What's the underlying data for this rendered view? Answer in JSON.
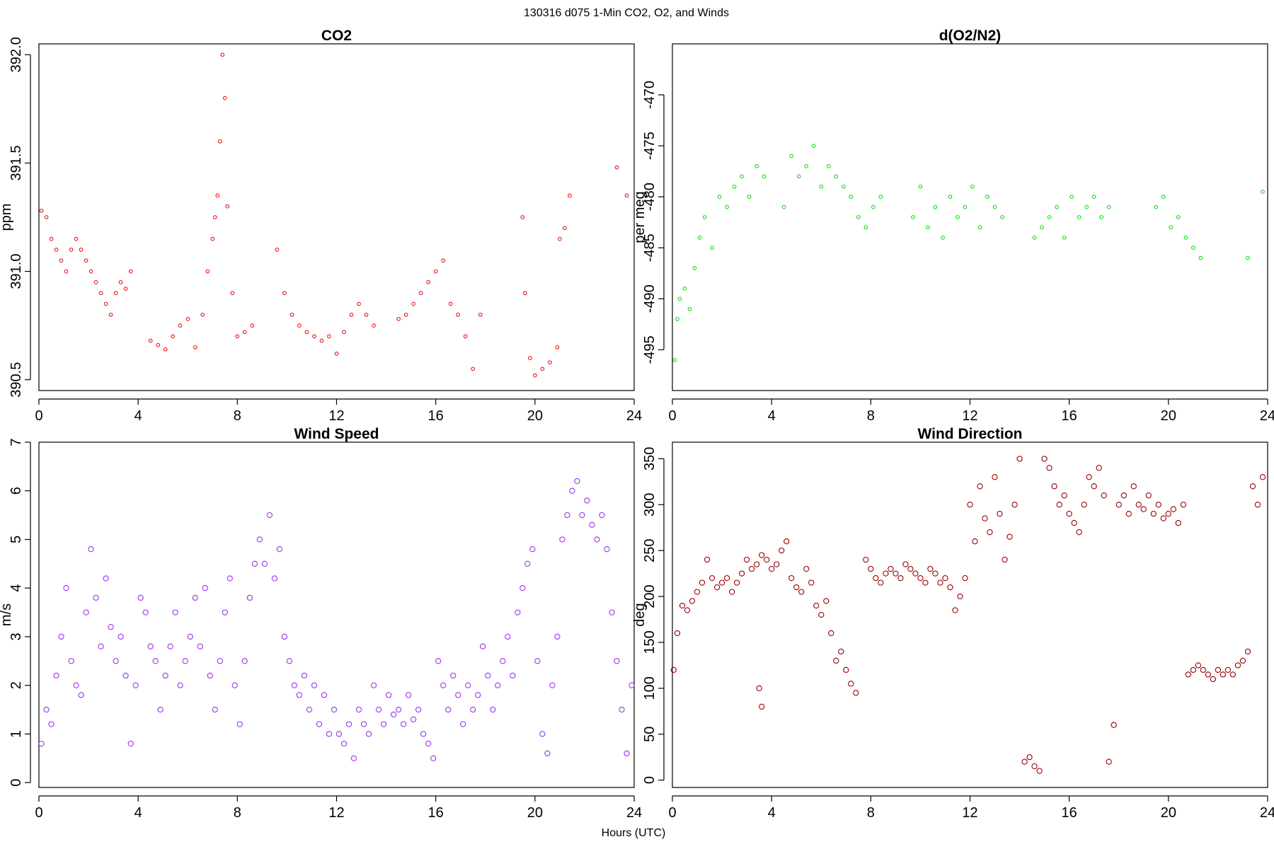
{
  "figure": {
    "title": "130316   d075   1-Min CO2, O2, and Winds",
    "xlabel": "Hours (UTC)"
  },
  "chart_data": [
    {
      "type": "scatter",
      "title": "CO2",
      "ylabel": "ppm",
      "xlabel": "",
      "xlim": [
        0,
        24
      ],
      "ylim": [
        390.45,
        392.05
      ],
      "xticks": [
        0,
        4,
        8,
        12,
        16,
        20,
        24
      ],
      "yticks": [
        390.5,
        391.0,
        391.5,
        392.0
      ],
      "ytick_labels": [
        "390.5",
        "391.0",
        "391.5",
        "392.0"
      ],
      "color": "#ee1111",
      "series": [
        {
          "x": [
            0.1,
            0.3,
            0.5,
            0.7,
            0.9,
            1.1,
            1.3,
            1.5,
            1.7,
            1.9,
            2.1,
            2.3,
            2.5,
            2.7,
            2.9,
            3.1,
            3.3,
            3.5,
            3.7,
            4.5,
            4.8,
            5.1,
            5.4,
            5.7,
            6.0,
            6.3,
            6.6,
            6.8,
            7.0,
            7.1,
            7.2,
            7.3,
            7.4,
            7.5,
            7.6,
            7.8,
            8.0,
            8.3,
            8.6,
            9.6,
            9.9,
            10.2,
            10.5,
            10.8,
            11.1,
            11.4,
            11.7,
            12.0,
            12.3,
            12.6,
            12.9,
            13.2,
            13.5,
            14.5,
            14.8,
            15.1,
            15.4,
            15.7,
            16.0,
            16.3,
            16.6,
            16.9,
            17.2,
            17.5,
            17.8,
            19.5,
            19.6,
            19.8,
            20.0,
            20.3,
            20.6,
            20.9,
            21.0,
            21.2,
            21.4,
            23.3,
            23.7
          ],
          "y": [
            391.28,
            391.25,
            391.15,
            391.1,
            391.05,
            391.0,
            391.1,
            391.15,
            391.1,
            391.05,
            391.0,
            390.95,
            390.9,
            390.85,
            390.8,
            390.9,
            390.95,
            390.92,
            391.0,
            390.68,
            390.66,
            390.64,
            390.7,
            390.75,
            390.78,
            390.65,
            390.8,
            391.0,
            391.15,
            391.25,
            391.35,
            391.6,
            392.0,
            391.8,
            391.3,
            390.9,
            390.7,
            390.72,
            390.75,
            391.1,
            390.9,
            390.8,
            390.75,
            390.72,
            390.7,
            390.68,
            390.7,
            390.62,
            390.72,
            390.8,
            390.85,
            390.8,
            390.75,
            390.78,
            390.8,
            390.85,
            390.9,
            390.95,
            391.0,
            391.05,
            390.85,
            390.8,
            390.7,
            390.55,
            390.8,
            391.25,
            390.9,
            390.6,
            390.52,
            390.55,
            390.58,
            390.65,
            391.15,
            391.2,
            391.35,
            391.48,
            391.35
          ]
        }
      ]
    },
    {
      "type": "scatter",
      "title": "d(O2/N2)",
      "ylabel": "per meg",
      "xlabel": "",
      "xlim": [
        0,
        24
      ],
      "ylim": [
        -499,
        -465
      ],
      "xticks": [
        0,
        4,
        8,
        12,
        16,
        20,
        24
      ],
      "yticks": [
        -495,
        -490,
        -485,
        -480,
        -475,
        -470
      ],
      "ytick_labels": [
        "-495",
        "-490",
        "-485",
        "-480",
        "-475",
        "-470"
      ],
      "color": "#11dd11",
      "series": [
        {
          "x": [
            0.1,
            0.2,
            0.3,
            0.5,
            0.7,
            0.9,
            1.1,
            1.3,
            1.6,
            1.9,
            2.2,
            2.5,
            2.8,
            3.1,
            3.4,
            3.7,
            4.5,
            4.8,
            5.1,
            5.4,
            5.7,
            6.0,
            6.3,
            6.6,
            6.9,
            7.2,
            7.5,
            7.8,
            8.1,
            8.4,
            9.7,
            10.0,
            10.3,
            10.6,
            10.9,
            11.2,
            11.5,
            11.8,
            12.1,
            12.4,
            12.7,
            13.0,
            13.3,
            14.6,
            14.9,
            15.2,
            15.5,
            15.8,
            16.1,
            16.4,
            16.7,
            17.0,
            17.3,
            17.6,
            19.5,
            19.8,
            20.1,
            20.4,
            20.7,
            21.0,
            21.3,
            23.2,
            23.8
          ],
          "y": [
            -496,
            -492,
            -490,
            -489,
            -491,
            -487,
            -484,
            -482,
            -485,
            -480,
            -481,
            -479,
            -478,
            -480,
            -477,
            -478,
            -481,
            -476,
            -478,
            -477,
            -475,
            -479,
            -477,
            -478,
            -479,
            -480,
            -482,
            -483,
            -481,
            -480,
            -482,
            -479,
            -483,
            -481,
            -484,
            -480,
            -482,
            -481,
            -479,
            -483,
            -480,
            -481,
            -482,
            -484,
            -483,
            -482,
            -481,
            -484,
            -480,
            -482,
            -481,
            -480,
            -482,
            -481,
            -481,
            -480,
            -483,
            -482,
            -484,
            -485,
            -486,
            -486,
            -479.5
          ]
        }
      ]
    },
    {
      "type": "scatter",
      "title": "Wind Speed",
      "ylabel": "m/s",
      "xlabel": "",
      "xlim": [
        0,
        24
      ],
      "ylim": [
        -0.1,
        7.0
      ],
      "xticks": [
        0,
        4,
        8,
        12,
        16,
        20,
        24
      ],
      "yticks": [
        0,
        1,
        2,
        3,
        4,
        5,
        6,
        7
      ],
      "ytick_labels": [
        "0",
        "1",
        "2",
        "3",
        "4",
        "5",
        "6",
        "7"
      ],
      "color": "#9933ee",
      "series": [
        {
          "x": [
            0.1,
            0.3,
            0.5,
            0.7,
            0.9,
            1.1,
            1.3,
            1.5,
            1.7,
            1.9,
            2.1,
            2.3,
            2.5,
            2.7,
            2.9,
            3.1,
            3.3,
            3.5,
            3.7,
            3.9,
            4.1,
            4.3,
            4.5,
            4.7,
            4.9,
            5.1,
            5.3,
            5.5,
            5.7,
            5.9,
            6.1,
            6.3,
            6.5,
            6.7,
            6.9,
            7.1,
            7.3,
            7.5,
            7.7,
            7.9,
            8.1,
            8.3,
            8.5,
            8.7,
            8.9,
            9.1,
            9.3,
            9.5,
            9.7,
            9.9,
            10.1,
            10.3,
            10.5,
            10.7,
            10.9,
            11.1,
            11.3,
            11.5,
            11.7,
            11.9,
            12.1,
            12.3,
            12.5,
            12.7,
            12.9,
            13.1,
            13.3,
            13.5,
            13.7,
            13.9,
            14.1,
            14.3,
            14.5,
            14.7,
            14.9,
            15.1,
            15.3,
            15.5,
            15.7,
            15.9,
            16.1,
            16.3,
            16.5,
            16.7,
            16.9,
            17.1,
            17.3,
            17.5,
            17.7,
            17.9,
            18.1,
            18.3,
            18.5,
            18.7,
            18.9,
            19.1,
            19.3,
            19.5,
            19.7,
            19.9,
            20.1,
            20.3,
            20.5,
            20.7,
            20.9,
            21.1,
            21.3,
            21.5,
            21.7,
            21.9,
            22.1,
            22.3,
            22.5,
            22.7,
            22.9,
            23.1,
            23.3,
            23.5,
            23.7,
            23.9
          ],
          "y": [
            0.8,
            1.5,
            1.2,
            2.2,
            3.0,
            4.0,
            2.5,
            2.0,
            1.8,
            3.5,
            4.8,
            3.8,
            2.8,
            4.2,
            3.2,
            2.5,
            3.0,
            2.2,
            0.8,
            2.0,
            3.8,
            3.5,
            2.8,
            2.5,
            1.5,
            2.2,
            2.8,
            3.5,
            2.0,
            2.5,
            3.0,
            3.8,
            2.8,
            4.0,
            2.2,
            1.5,
            2.5,
            3.5,
            4.2,
            2.0,
            1.2,
            2.5,
            3.8,
            4.5,
            5.0,
            4.5,
            5.5,
            4.2,
            4.8,
            3.0,
            2.5,
            2.0,
            1.8,
            2.2,
            1.5,
            2.0,
            1.2,
            1.8,
            1.0,
            1.5,
            1.0,
            0.8,
            1.2,
            0.5,
            1.5,
            1.2,
            1.0,
            2.0,
            1.5,
            1.2,
            1.8,
            1.4,
            1.5,
            1.2,
            1.8,
            1.3,
            1.5,
            1.0,
            0.8,
            0.5,
            2.5,
            2.0,
            1.5,
            2.2,
            1.8,
            1.2,
            2.0,
            1.5,
            1.8,
            2.8,
            2.2,
            1.5,
            2.0,
            2.5,
            3.0,
            2.2,
            3.5,
            4.0,
            4.5,
            4.8,
            2.5,
            1.0,
            0.6,
            2.0,
            3.0,
            5.0,
            5.5,
            6.0,
            6.2,
            5.5,
            5.8,
            5.3,
            5.0,
            5.5,
            4.8,
            3.5,
            2.5,
            1.5,
            0.6,
            2.0
          ]
        }
      ]
    },
    {
      "type": "scatter",
      "title": "Wind Direction",
      "ylabel": "deg",
      "xlabel": "",
      "xlim": [
        0,
        24
      ],
      "ylim": [
        -8,
        368
      ],
      "xticks": [
        0,
        4,
        8,
        12,
        16,
        20,
        24
      ],
      "yticks": [
        0,
        50,
        100,
        150,
        200,
        250,
        300,
        350
      ],
      "ytick_labels": [
        "0",
        "50",
        "100",
        "150",
        "200",
        "250",
        "300",
        "350"
      ],
      "color": "#990000",
      "series": [
        {
          "x": [
            0.05,
            0.2,
            0.4,
            0.6,
            0.8,
            1.0,
            1.2,
            1.4,
            1.6,
            1.8,
            2.0,
            2.2,
            2.4,
            2.6,
            2.8,
            3.0,
            3.2,
            3.4,
            3.6,
            3.8,
            4.0,
            4.2,
            4.4,
            4.6,
            4.8,
            5.0,
            5.2,
            5.4,
            5.6,
            5.8,
            6.0,
            6.2,
            6.4,
            6.6,
            6.8,
            7.0,
            7.2,
            7.4,
            3.5,
            3.6,
            7.8,
            8.0,
            8.2,
            8.4,
            8.6,
            8.8,
            9.0,
            9.2,
            9.4,
            9.6,
            9.8,
            10.0,
            10.2,
            10.4,
            10.6,
            10.8,
            11.0,
            11.2,
            11.4,
            11.6,
            11.8,
            12.0,
            12.2,
            12.4,
            12.6,
            12.8,
            13.0,
            13.2,
            13.4,
            13.6,
            13.8,
            14.0,
            14.2,
            14.4,
            14.6,
            14.8,
            15.0,
            15.2,
            15.4,
            15.6,
            15.8,
            16.0,
            16.2,
            16.4,
            16.6,
            16.8,
            17.0,
            17.2,
            17.4,
            17.6,
            17.8,
            18.0,
            18.2,
            18.4,
            18.6,
            18.8,
            19.0,
            19.2,
            19.4,
            19.6,
            19.8,
            20.0,
            20.2,
            20.4,
            20.6,
            20.8,
            21.0,
            21.2,
            21.4,
            21.6,
            21.8,
            22.0,
            22.2,
            22.4,
            22.6,
            22.8,
            23.0,
            23.2,
            23.4,
            23.6,
            23.8
          ],
          "y": [
            120,
            160,
            190,
            185,
            195,
            205,
            215,
            240,
            220,
            210,
            215,
            220,
            205,
            215,
            225,
            240,
            230,
            235,
            245,
            240,
            230,
            235,
            250,
            260,
            220,
            210,
            205,
            230,
            215,
            190,
            180,
            195,
            160,
            130,
            140,
            120,
            105,
            95,
            100,
            80,
            240,
            230,
            220,
            215,
            225,
            230,
            225,
            220,
            235,
            230,
            225,
            220,
            215,
            230,
            225,
            215,
            220,
            210,
            185,
            200,
            220,
            300,
            260,
            320,
            285,
            270,
            330,
            290,
            240,
            265,
            300,
            350,
            20,
            25,
            15,
            10,
            350,
            340,
            320,
            300,
            310,
            290,
            280,
            270,
            300,
            330,
            320,
            340,
            310,
            20,
            60,
            300,
            310,
            290,
            320,
            300,
            295,
            310,
            290,
            300,
            285,
            290,
            295,
            280,
            300,
            115,
            120,
            125,
            120,
            115,
            110,
            120,
            115,
            120,
            115,
            125,
            130,
            140,
            320,
            300,
            330
          ]
        }
      ]
    }
  ]
}
